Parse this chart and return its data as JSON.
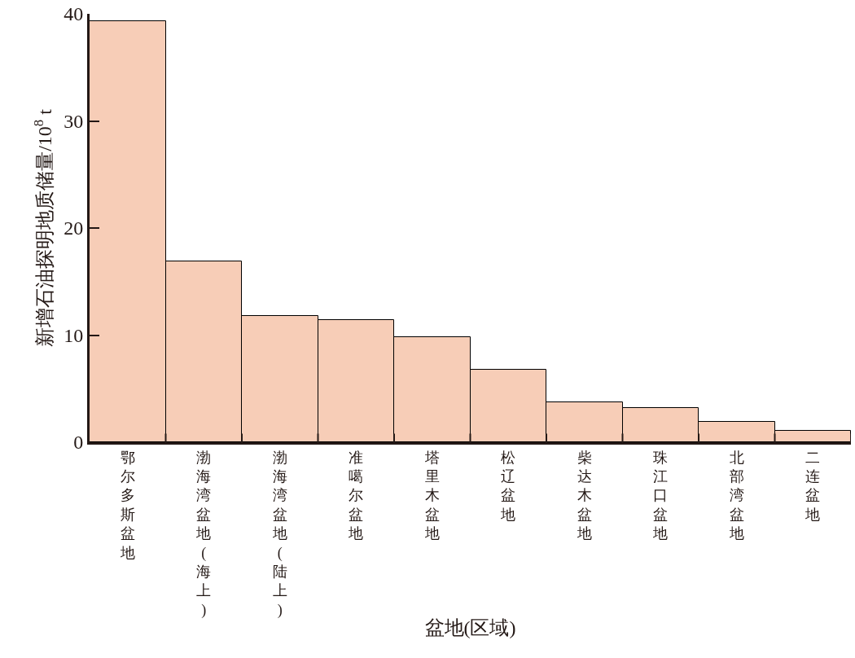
{
  "chart_data": {
    "type": "bar",
    "xlabel": "盆地(区域)",
    "ylabel": "新增石油探明地质储量/10$^{8}$ t",
    "categories": [
      "鄂尔多斯盆地",
      "渤海湾盆地(海上)",
      "渤海湾盆地(陆上)",
      "准噶尔盆地",
      "塔里木盆地",
      "松辽盆地",
      "柴达木盆地",
      "珠江口盆地",
      "北部湾盆地",
      "二连盆地"
    ],
    "values": [
      39.3,
      16.9,
      11.8,
      11.4,
      9.8,
      6.8,
      3.7,
      3.2,
      1.9,
      1.1
    ],
    "color": "#f7cdb7",
    "ylim": [
      0,
      40
    ],
    "yticks": [
      0,
      10,
      20,
      30,
      40
    ]
  }
}
